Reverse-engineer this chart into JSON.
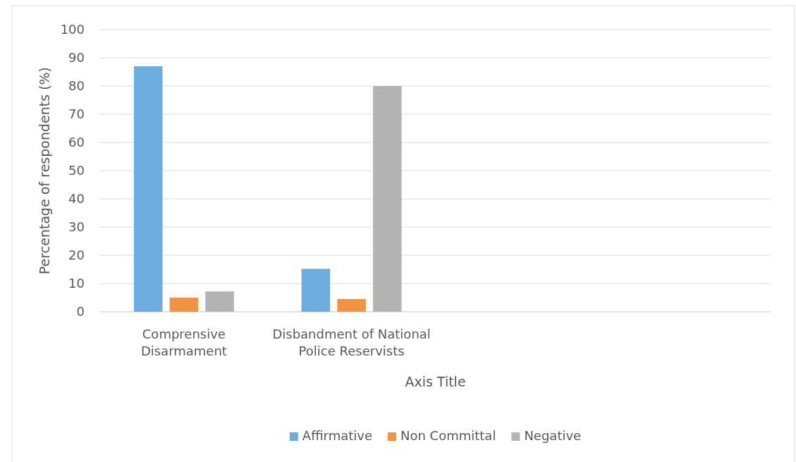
{
  "chart_data": {
    "type": "bar",
    "xlabel": "Axis Title",
    "ylabel": "Percentage of respondents (%)",
    "categories": [
      "Comprensive Disarmament",
      "Disbandment of National Police Reservists",
      null,
      null
    ],
    "series": [
      {
        "name": "Affirmative",
        "color": "#6eacdf",
        "values": [
          87,
          15.2,
          null,
          null
        ]
      },
      {
        "name": "Non Committal",
        "color": "#f19342",
        "values": [
          5,
          4.5,
          null,
          null
        ]
      },
      {
        "name": "Negative",
        "color": "#b3b4b6",
        "values": [
          7.2,
          80,
          null,
          null
        ]
      }
    ],
    "ylim": [
      0,
      100
    ],
    "yticks": [
      0,
      10,
      20,
      30,
      40,
      50,
      60,
      70,
      80,
      90,
      100
    ],
    "grid": "y",
    "legend": "bottom"
  }
}
